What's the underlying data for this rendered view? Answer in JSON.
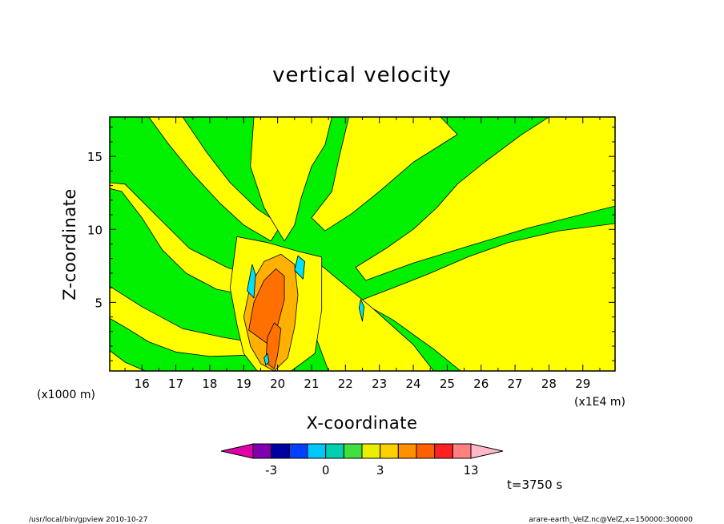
{
  "footer": {
    "left": "/usr/local/bin/gpview   2010-10-27",
    "right": "arare-earth_VelZ.nc@VelZ,x=150000:300000"
  },
  "chart_data": {
    "type": "heatmap",
    "title": "vertical velocity",
    "xlabel": "X-coordinate",
    "ylabel": "Z-coordinate",
    "x_unit_left": "(x1000 m)",
    "x_unit_right": "(x1E4 m)",
    "x_ticks": [
      16,
      17,
      18,
      19,
      20,
      21,
      22,
      23,
      24,
      25,
      26,
      27,
      28,
      29
    ],
    "y_ticks": [
      5,
      10,
      15
    ],
    "xlim": [
      15.05,
      29.95
    ],
    "ylim": [
      0.3,
      17.7
    ],
    "grid": false,
    "time_label": "t=3750 s",
    "colorbar": {
      "levels": [
        -4,
        -3,
        -2,
        -1,
        0,
        1,
        2,
        3,
        5,
        7,
        9,
        11,
        13
      ],
      "labels": [
        {
          "value": -3,
          "text": "-3"
        },
        {
          "value": 0,
          "text": "0"
        },
        {
          "value": 3,
          "text": "3"
        },
        {
          "value": 13,
          "text": "13"
        }
      ],
      "under_color": "#e000a8",
      "over_color": "#ffb8c8",
      "colors": [
        "#8000b0",
        "#0000a0",
        "#0040ff",
        "#00c8ff",
        "#00d0b0",
        "#40e040",
        "#e8f000",
        "#ffd000",
        "#ff9000",
        "#ff6000",
        "#ff2020",
        "#ff8080"
      ]
    },
    "fill_colors": {
      "green": "#00f000",
      "yellow": "#ffff00",
      "orange": "#ffb000",
      "deep_orange": "#ff7000",
      "cyan": "#00e0ff"
    },
    "field": {
      "background": "green",
      "bands": [
        {
          "color": "yellow",
          "points": [
            [
              15.05,
              13.2
            ],
            [
              15.5,
              13.1
            ],
            [
              16.4,
              11
            ],
            [
              17.4,
              8.7
            ],
            [
              18.5,
              7.4
            ],
            [
              19.4,
              6.7
            ],
            [
              19.3,
              5.4
            ],
            [
              18.2,
              5.9
            ],
            [
              17.3,
              7
            ],
            [
              16.6,
              8.6
            ],
            [
              16,
              10.8
            ],
            [
              15.4,
              12.6
            ],
            [
              15.05,
              12.8
            ]
          ]
        },
        {
          "color": "yellow",
          "points": [
            [
              16.2,
              17.7
            ],
            [
              17.2,
              17.7
            ],
            [
              17.9,
              15.3
            ],
            [
              18.6,
              13.2
            ],
            [
              19.4,
              11.4
            ],
            [
              20.1,
              10.3
            ],
            [
              19.8,
              9.2
            ],
            [
              19,
              10.3
            ],
            [
              18.3,
              11.8
            ],
            [
              17.5,
              13.8
            ],
            [
              16.8,
              15.8
            ]
          ]
        },
        {
          "color": "yellow",
          "points": [
            [
              15.05,
              6.1
            ],
            [
              16,
              4.7
            ],
            [
              17.2,
              3.2
            ],
            [
              18.4,
              2.6
            ],
            [
              19.2,
              2.3
            ],
            [
              19.3,
              1.4
            ],
            [
              18,
              1.3
            ],
            [
              17,
              1.6
            ],
            [
              16.2,
              2.3
            ],
            [
              15.5,
              3.3
            ],
            [
              15.05,
              3.9
            ]
          ]
        },
        {
          "color": "yellow",
          "points": [
            [
              15.05,
              1.7
            ],
            [
              15.5,
              0.9
            ],
            [
              16.1,
              0.3
            ],
            [
              15.05,
              0.3
            ]
          ]
        },
        {
          "color": "yellow",
          "points": [
            [
              19.3,
              17.7
            ],
            [
              20.6,
              17.7
            ],
            [
              21.6,
              17.7
            ],
            [
              21.4,
              15.8
            ],
            [
              21,
              14.3
            ],
            [
              20.7,
              12.2
            ],
            [
              20.5,
              10.3
            ],
            [
              20.2,
              9.2
            ],
            [
              19.6,
              11.5
            ],
            [
              19.2,
              14.3
            ]
          ]
        },
        {
          "color": "yellow",
          "points": [
            [
              22.1,
              17.7
            ],
            [
              23.6,
              17.7
            ],
            [
              24.8,
              17.7
            ],
            [
              25.3,
              16.5
            ],
            [
              24,
              14.6
            ],
            [
              23,
              12.6
            ],
            [
              22.2,
              11.1
            ],
            [
              21.4,
              9.9
            ],
            [
              21,
              10.8
            ],
            [
              21.6,
              12.6
            ],
            [
              21.8,
              14.8
            ]
          ]
        },
        {
          "color": "yellow",
          "points": [
            [
              25.6,
              17.7
            ],
            [
              28,
              17.7
            ],
            [
              27.2,
              16.5
            ],
            [
              26.1,
              14.6
            ],
            [
              25.3,
              13.1
            ],
            [
              24.7,
              11.5
            ],
            [
              24,
              10
            ],
            [
              23.2,
              8.7
            ],
            [
              22.3,
              7.4
            ],
            [
              22.6,
              6.5
            ],
            [
              24,
              7.7
            ],
            [
              25.7,
              8.9
            ],
            [
              27.4,
              10.1
            ],
            [
              29.95,
              11.6
            ],
            [
              29.95,
              10.4
            ],
            [
              28.3,
              9.9
            ],
            [
              26.8,
              9.1
            ],
            [
              25.6,
              8.1
            ],
            [
              24.4,
              6.9
            ],
            [
              23.3,
              5.9
            ],
            [
              22.4,
              5.1
            ],
            [
              23.4,
              3.8
            ],
            [
              24.6,
              1.8
            ],
            [
              25.4,
              0.3
            ],
            [
              29.95,
              0.3
            ],
            [
              29.95,
              17.7
            ]
          ]
        },
        {
          "color": "yellow",
          "points": [
            [
              21.3,
              7.5
            ],
            [
              22.8,
              4.6
            ],
            [
              24,
              2.1
            ],
            [
              24.6,
              0.3
            ],
            [
              21.5,
              0.3
            ],
            [
              21.1,
              2.8
            ],
            [
              20.8,
              5.3
            ]
          ]
        },
        {
          "color": "yellow",
          "points": [
            [
              18.8,
              9.5
            ],
            [
              19.7,
              9.1
            ],
            [
              20.6,
              8.5
            ],
            [
              21.3,
              8.1
            ],
            [
              21.3,
              4.5
            ],
            [
              21.1,
              1.5
            ],
            [
              20.4,
              0.3
            ],
            [
              19.4,
              0.3
            ],
            [
              19,
              1.5
            ],
            [
              18.8,
              3.5
            ],
            [
              18.6,
              6
            ]
          ]
        },
        {
          "color": "orange",
          "points": [
            [
              19,
              4
            ],
            [
              19.2,
              6.2
            ],
            [
              19.6,
              7.8
            ],
            [
              20.1,
              8.3
            ],
            [
              20.5,
              7.6
            ],
            [
              20.6,
              5.5
            ],
            [
              20.5,
              3.3
            ],
            [
              20.3,
              1.2
            ],
            [
              19.9,
              0.3
            ],
            [
              19.5,
              0.8
            ],
            [
              19.2,
              2
            ]
          ]
        },
        {
          "color": "deep_orange",
          "points": [
            [
              19.15,
              3.1
            ],
            [
              19.3,
              5
            ],
            [
              19.6,
              6.5
            ],
            [
              19.95,
              7.3
            ],
            [
              20.2,
              6.8
            ],
            [
              20.2,
              5.2
            ],
            [
              20,
              3.4
            ],
            [
              19.8,
              2
            ]
          ]
        },
        {
          "color": "deep_orange",
          "points": [
            [
              19.7,
              2.6
            ],
            [
              19.9,
              3.6
            ],
            [
              20.1,
              3.2
            ],
            [
              20,
              1.4
            ],
            [
              19.9,
              0.45
            ],
            [
              19.65,
              0.9
            ]
          ]
        },
        {
          "color": "cyan",
          "points": [
            [
              19.1,
              5.8
            ],
            [
              19.25,
              7.6
            ],
            [
              19.35,
              6.9
            ],
            [
              19.3,
              5.3
            ]
          ]
        },
        {
          "color": "cyan",
          "points": [
            [
              20.5,
              7.2
            ],
            [
              20.6,
              8.2
            ],
            [
              20.8,
              7.8
            ],
            [
              20.75,
              6.6
            ]
          ]
        },
        {
          "color": "cyan",
          "points": [
            [
              22.4,
              4.6
            ],
            [
              22.45,
              5.2
            ],
            [
              22.55,
              4.7
            ],
            [
              22.5,
              3.7
            ]
          ]
        },
        {
          "color": "cyan",
          "points": [
            [
              19.6,
              1.2
            ],
            [
              19.7,
              1.5
            ],
            [
              19.75,
              0.9
            ],
            [
              19.65,
              0.7
            ]
          ]
        }
      ]
    }
  }
}
